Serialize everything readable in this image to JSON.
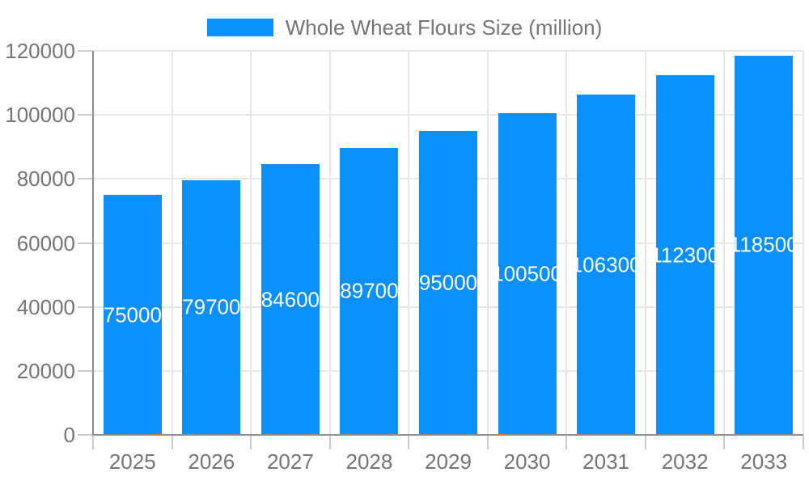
{
  "chart_data": {
    "type": "bar",
    "title": "",
    "legend_label": "Whole Wheat Flours Size (million)",
    "legend_position": "top-center",
    "categories": [
      "2025",
      "2026",
      "2027",
      "2028",
      "2029",
      "2030",
      "2031",
      "2032",
      "2033"
    ],
    "series": [
      {
        "name": "Whole Wheat Flours Size (million)",
        "values": [
          75000,
          79700,
          84600,
          89700,
          95000,
          100500,
          106300,
          112300,
          118500
        ]
      }
    ],
    "value_labels_shown": true,
    "xlabel": "",
    "ylabel": "",
    "ylim": [
      0,
      120000
    ],
    "ytick_step": 20000,
    "yticks": [
      0,
      20000,
      40000,
      60000,
      80000,
      100000,
      120000
    ],
    "grid": true,
    "colors": {
      "bar": "#0b90fa",
      "axis_text": "#757575",
      "value_label_text": "#ffffff",
      "gridline": "#e6e6e6",
      "axis_line": "#8f8f8f",
      "tick": "#cccccc",
      "background": "#ffffff"
    }
  }
}
